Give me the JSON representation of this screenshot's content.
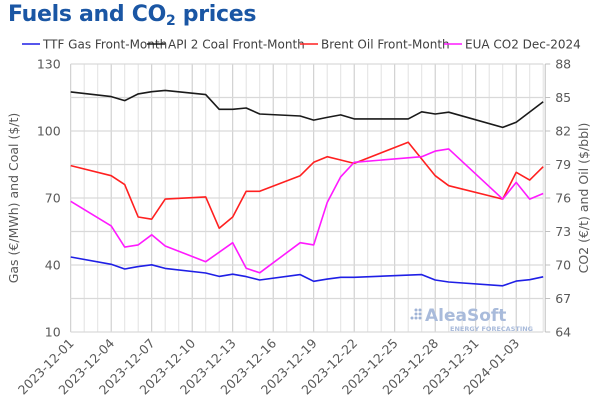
{
  "title_main": "Fuels and CO",
  "title_sub": "2",
  "title_tail": " prices",
  "chart_data": {
    "type": "line",
    "title": "Fuels and CO2 prices",
    "xlabel": "",
    "ylabel": "Gas (€/MWh) and Coal ($/t)",
    "y2label": "CO2 (€/t) and Oil ($/bbl)",
    "ylim": [
      10,
      130
    ],
    "y2lim": [
      64,
      88
    ],
    "yticks": [
      10,
      40,
      70,
      100,
      130
    ],
    "y2ticks": [
      64,
      67,
      70,
      73,
      76,
      79,
      82,
      85,
      88
    ],
    "ygrid_step": 15,
    "xlim": [
      "2023-12-01",
      "2024-01-05"
    ],
    "xtick_labels": [
      "2023-12-01",
      "2023-12-04",
      "2023-12-07",
      "2023-12-10",
      "2023-12-13",
      "2023-12-16",
      "2023-12-19",
      "2023-12-22",
      "2023-12-25",
      "2023-12-28",
      "2023-12-31",
      "2024-01-03"
    ],
    "grid": true,
    "legend_position": "top",
    "watermark": {
      "brand": "AleaSoft",
      "tagline": "ENERGY FORECASTING"
    },
    "series": [
      {
        "name": "TTF Gas Front-Month",
        "axis": "left",
        "color": "#1f1fe6",
        "points": [
          [
            "2023-12-01",
            43.6
          ],
          [
            "2023-12-04",
            40.3
          ],
          [
            "2023-12-05",
            38.2
          ],
          [
            "2023-12-06",
            39.3
          ],
          [
            "2023-12-07",
            40.1
          ],
          [
            "2023-12-08",
            38.5
          ],
          [
            "2023-12-11",
            36.4
          ],
          [
            "2023-12-12",
            34.9
          ],
          [
            "2023-12-13",
            35.9
          ],
          [
            "2023-12-14",
            34.8
          ],
          [
            "2023-12-15",
            33.3
          ],
          [
            "2023-12-18",
            35.7
          ],
          [
            "2023-12-19",
            32.7
          ],
          [
            "2023-12-20",
            33.7
          ],
          [
            "2023-12-21",
            34.5
          ],
          [
            "2023-12-22",
            34.5
          ],
          [
            "2023-12-27",
            35.7
          ],
          [
            "2023-12-28",
            33.3
          ],
          [
            "2023-12-29",
            32.4
          ],
          [
            "2024-01-02",
            30.7
          ],
          [
            "2024-01-03",
            32.8
          ],
          [
            "2024-01-04",
            33.4
          ],
          [
            "2024-01-05",
            34.7
          ]
        ]
      },
      {
        "name": "API 2 Coal Front-Month",
        "axis": "left",
        "color": "#1a1a1a",
        "points": [
          [
            "2023-12-01",
            117.5
          ],
          [
            "2023-12-04",
            115.4
          ],
          [
            "2023-12-05",
            113.6
          ],
          [
            "2023-12-06",
            116.6
          ],
          [
            "2023-12-07",
            117.6
          ],
          [
            "2023-12-08",
            118.2
          ],
          [
            "2023-12-11",
            116.3
          ],
          [
            "2023-12-12",
            109.7
          ],
          [
            "2023-12-13",
            109.7
          ],
          [
            "2023-12-14",
            110.3
          ],
          [
            "2023-12-15",
            107.6
          ],
          [
            "2023-12-18",
            106.7
          ],
          [
            "2023-12-19",
            104.9
          ],
          [
            "2023-12-20",
            106.1
          ],
          [
            "2023-12-21",
            107.2
          ],
          [
            "2023-12-22",
            105.4
          ],
          [
            "2023-12-26",
            105.4
          ],
          [
            "2023-12-27",
            108.6
          ],
          [
            "2023-12-28",
            107.6
          ],
          [
            "2023-12-29",
            108.4
          ],
          [
            "2024-01-02",
            101.6
          ],
          [
            "2024-01-03",
            103.9
          ],
          [
            "2024-01-05",
            113.1
          ]
        ]
      },
      {
        "name": "Brent Oil Front-Month",
        "axis": "right",
        "color": "#ff2020",
        "points": [
          [
            "2023-12-01",
            78.9
          ],
          [
            "2023-12-04",
            78.0
          ],
          [
            "2023-12-05",
            77.2
          ],
          [
            "2023-12-06",
            74.3
          ],
          [
            "2023-12-07",
            74.1
          ],
          [
            "2023-12-08",
            75.9
          ],
          [
            "2023-12-11",
            76.1
          ],
          [
            "2023-12-12",
            73.3
          ],
          [
            "2023-12-13",
            74.3
          ],
          [
            "2023-12-14",
            76.6
          ],
          [
            "2023-12-15",
            76.6
          ],
          [
            "2023-12-18",
            78.0
          ],
          [
            "2023-12-19",
            79.2
          ],
          [
            "2023-12-20",
            79.7
          ],
          [
            "2023-12-21",
            79.4
          ],
          [
            "2023-12-22",
            79.1
          ],
          [
            "2023-12-26",
            81.0
          ],
          [
            "2023-12-28",
            78.0
          ],
          [
            "2023-12-29",
            77.1
          ],
          [
            "2024-01-02",
            75.9
          ],
          [
            "2024-01-03",
            78.3
          ],
          [
            "2024-01-04",
            77.6
          ],
          [
            "2024-01-05",
            78.8
          ]
        ]
      },
      {
        "name": "EUA CO2 Dec-2024",
        "axis": "right",
        "color": "#ff1aff",
        "points": [
          [
            "2023-12-01",
            75.7
          ],
          [
            "2023-12-04",
            73.5
          ],
          [
            "2023-12-05",
            71.6
          ],
          [
            "2023-12-06",
            71.8
          ],
          [
            "2023-12-07",
            72.7
          ],
          [
            "2023-12-08",
            71.7
          ],
          [
            "2023-12-11",
            70.3
          ],
          [
            "2023-12-13",
            72.0
          ],
          [
            "2023-12-14",
            69.7
          ],
          [
            "2023-12-15",
            69.3
          ],
          [
            "2023-12-18",
            72.0
          ],
          [
            "2023-12-19",
            71.8
          ],
          [
            "2023-12-20",
            75.6
          ],
          [
            "2023-12-21",
            77.9
          ],
          [
            "2023-12-22",
            79.2
          ],
          [
            "2023-12-27",
            79.7
          ],
          [
            "2023-12-28",
            80.2
          ],
          [
            "2023-12-29",
            80.4
          ],
          [
            "2024-01-02",
            75.9
          ],
          [
            "2024-01-03",
            77.4
          ],
          [
            "2024-01-04",
            75.9
          ],
          [
            "2024-01-05",
            76.4
          ]
        ]
      }
    ]
  }
}
